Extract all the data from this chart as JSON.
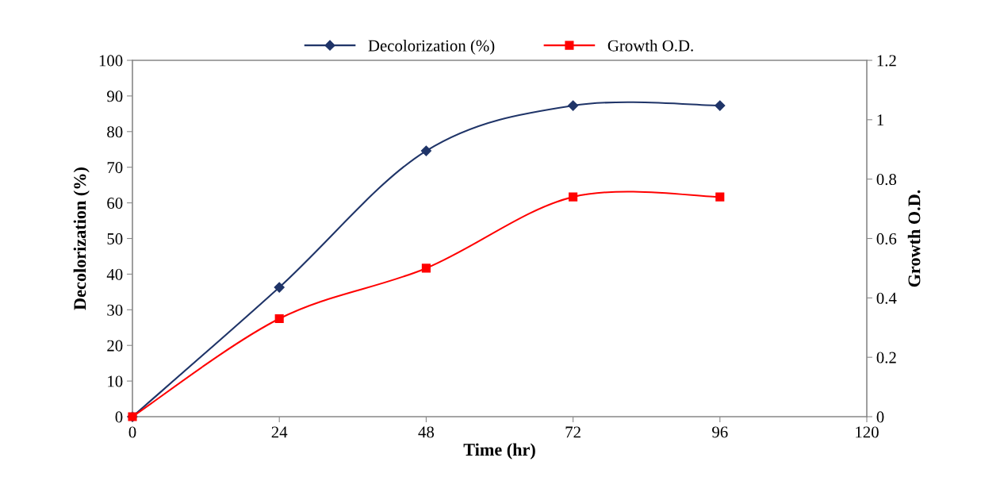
{
  "chart_data": {
    "type": "line",
    "xlabel": "Time (hr)",
    "ylabel": "Decolorization (%)",
    "y2label": "Growth O.D.",
    "x": [
      0,
      24,
      48,
      72,
      96
    ],
    "series": [
      {
        "name": "Decolorization (%)",
        "color": "#1f3468",
        "marker": "diamond",
        "values": [
          0,
          36.3,
          74.6,
          87.3,
          87.3
        ]
      },
      {
        "name": "Growth O.D.",
        "color": "#ff0000",
        "marker": "square",
        "axis": "y2",
        "values": [
          0,
          0.33,
          0.5,
          0.74,
          0.74
        ]
      }
    ],
    "xlim": [
      0,
      120
    ],
    "xticks": [
      0,
      24,
      48,
      72,
      96,
      120
    ],
    "ylim": [
      0,
      100
    ],
    "yticks": [
      0,
      10,
      20,
      30,
      40,
      50,
      60,
      70,
      80,
      90,
      100
    ],
    "y2lim": [
      0,
      1.2
    ],
    "y2ticks": [
      0,
      {
        "value": 0.2,
        "label": "0.2"
      },
      {
        "value": 0.4,
        "label": "0.4"
      },
      {
        "value": 0.6,
        "label": "0.6"
      },
      {
        "value": 0.8,
        "label": "0.8"
      },
      1,
      {
        "value": 1.2,
        "label": "1.2"
      }
    ],
    "grid": false,
    "legend": "top",
    "line_style": "solid"
  }
}
